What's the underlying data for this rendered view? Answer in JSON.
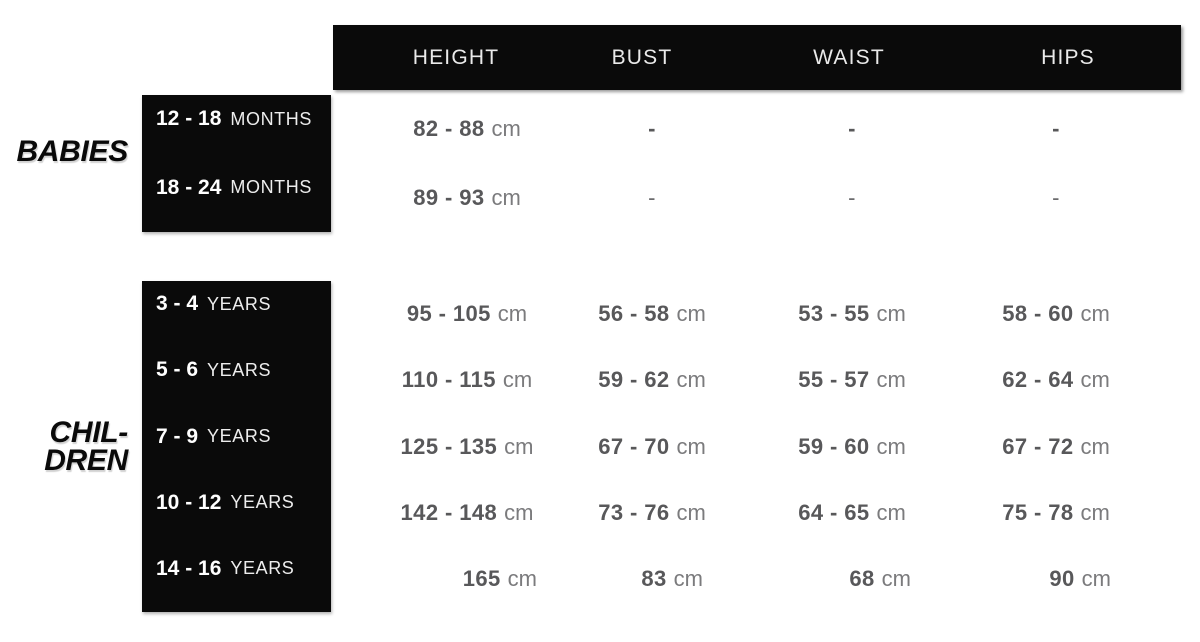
{
  "header": {
    "cols": [
      "HEIGHT",
      "BUST",
      "WAIST",
      "HIPS"
    ]
  },
  "babies": {
    "label": "BABIES",
    "rows": [
      {
        "range": "12 - 18",
        "unit": "MONTHS",
        "cells": [
          {
            "v": "82 - 88",
            "u": "cm"
          },
          {
            "v": "-"
          },
          {
            "v": "-"
          },
          {
            "v": "-"
          }
        ]
      },
      {
        "range": "18 - 24",
        "unit": "MONTHS",
        "cells": [
          {
            "v": "89 - 93",
            "u": "cm"
          },
          {
            "v": "-"
          },
          {
            "v": "-"
          },
          {
            "v": "-"
          }
        ]
      }
    ]
  },
  "children": {
    "label_line1": "CHIL-",
    "label_line2": "DREN",
    "rows": [
      {
        "range": "3 - 4",
        "unit": "YEARS",
        "cells": [
          {
            "v": "95 - 105",
            "u": "cm"
          },
          {
            "v": "56 - 58",
            "u": "cm"
          },
          {
            "v": "53 - 55",
            "u": "cm"
          },
          {
            "v": "58 - 60",
            "u": "cm"
          }
        ]
      },
      {
        "range": "5 - 6",
        "unit": "YEARS",
        "cells": [
          {
            "v": "110 - 115",
            "u": "cm"
          },
          {
            "v": "59 - 62",
            "u": "cm"
          },
          {
            "v": "55 - 57",
            "u": "cm"
          },
          {
            "v": "62 - 64",
            "u": "cm"
          }
        ]
      },
      {
        "range": "7 - 9",
        "unit": "YEARS",
        "cells": [
          {
            "v": "125 - 135",
            "u": "cm"
          },
          {
            "v": "67 - 70",
            "u": "cm"
          },
          {
            "v": "59 - 60",
            "u": "cm"
          },
          {
            "v": "67 - 72",
            "u": "cm"
          }
        ]
      },
      {
        "range": "10 - 12",
        "unit": "YEARS",
        "cells": [
          {
            "v": "142 - 148",
            "u": "cm"
          },
          {
            "v": "73 - 76",
            "u": "cm"
          },
          {
            "v": "64 - 65",
            "u": "cm"
          },
          {
            "v": "75 - 78",
            "u": "cm"
          }
        ]
      },
      {
        "range": "14 - 16",
        "unit": "YEARS",
        "cells": [
          {
            "v": "165",
            "u": "cm"
          },
          {
            "v": "83",
            "u": "cm"
          },
          {
            "v": "68",
            "u": "cm"
          },
          {
            "v": "90",
            "u": "cm"
          }
        ]
      }
    ]
  },
  "colors": {
    "box_black": "#0a0a0a",
    "value_number": "#58585a",
    "value_unit": "#7b7b7d",
    "header_text": "#eaeaea"
  },
  "chart_data": {
    "type": "table",
    "title": "Kids clothing size chart",
    "columns": [
      "",
      "HEIGHT",
      "BUST",
      "WAIST",
      "HIPS"
    ],
    "row_groups": [
      {
        "group": "BABIES",
        "rows": [
          {
            "label": "12 - 18 MONTHS",
            "height": "82 - 88 cm",
            "bust": "-",
            "waist": "-",
            "hips": "-"
          },
          {
            "label": "18 - 24 MONTHS",
            "height": "89 - 93 cm",
            "bust": "-",
            "waist": "-",
            "hips": "-"
          }
        ]
      },
      {
        "group": "CHILDREN",
        "rows": [
          {
            "label": "3 - 4 YEARS",
            "height": "95 - 105 cm",
            "bust": "56 - 58 cm",
            "waist": "53 - 55 cm",
            "hips": "58 - 60 cm"
          },
          {
            "label": "5 - 6 YEARS",
            "height": "110 - 115 cm",
            "bust": "59 - 62 cm",
            "waist": "55 - 57 cm",
            "hips": "62 - 64 cm"
          },
          {
            "label": "7 - 9 YEARS",
            "height": "125 - 135 cm",
            "bust": "67 - 70 cm",
            "waist": "59 - 60 cm",
            "hips": "67 - 72 cm"
          },
          {
            "label": "10 - 12 YEARS",
            "height": "142 - 148 cm",
            "bust": "73 - 76 cm",
            "waist": "64 - 65 cm",
            "hips": "75 - 78 cm"
          },
          {
            "label": "14 - 16 YEARS",
            "height": "165 cm",
            "bust": "83 cm",
            "waist": "68 cm",
            "hips": "90 cm"
          }
        ]
      }
    ],
    "layout": {
      "header_background": "black",
      "row_label_background": "black",
      "values_alignment": "column-centered, last row right-aligned"
    }
  }
}
